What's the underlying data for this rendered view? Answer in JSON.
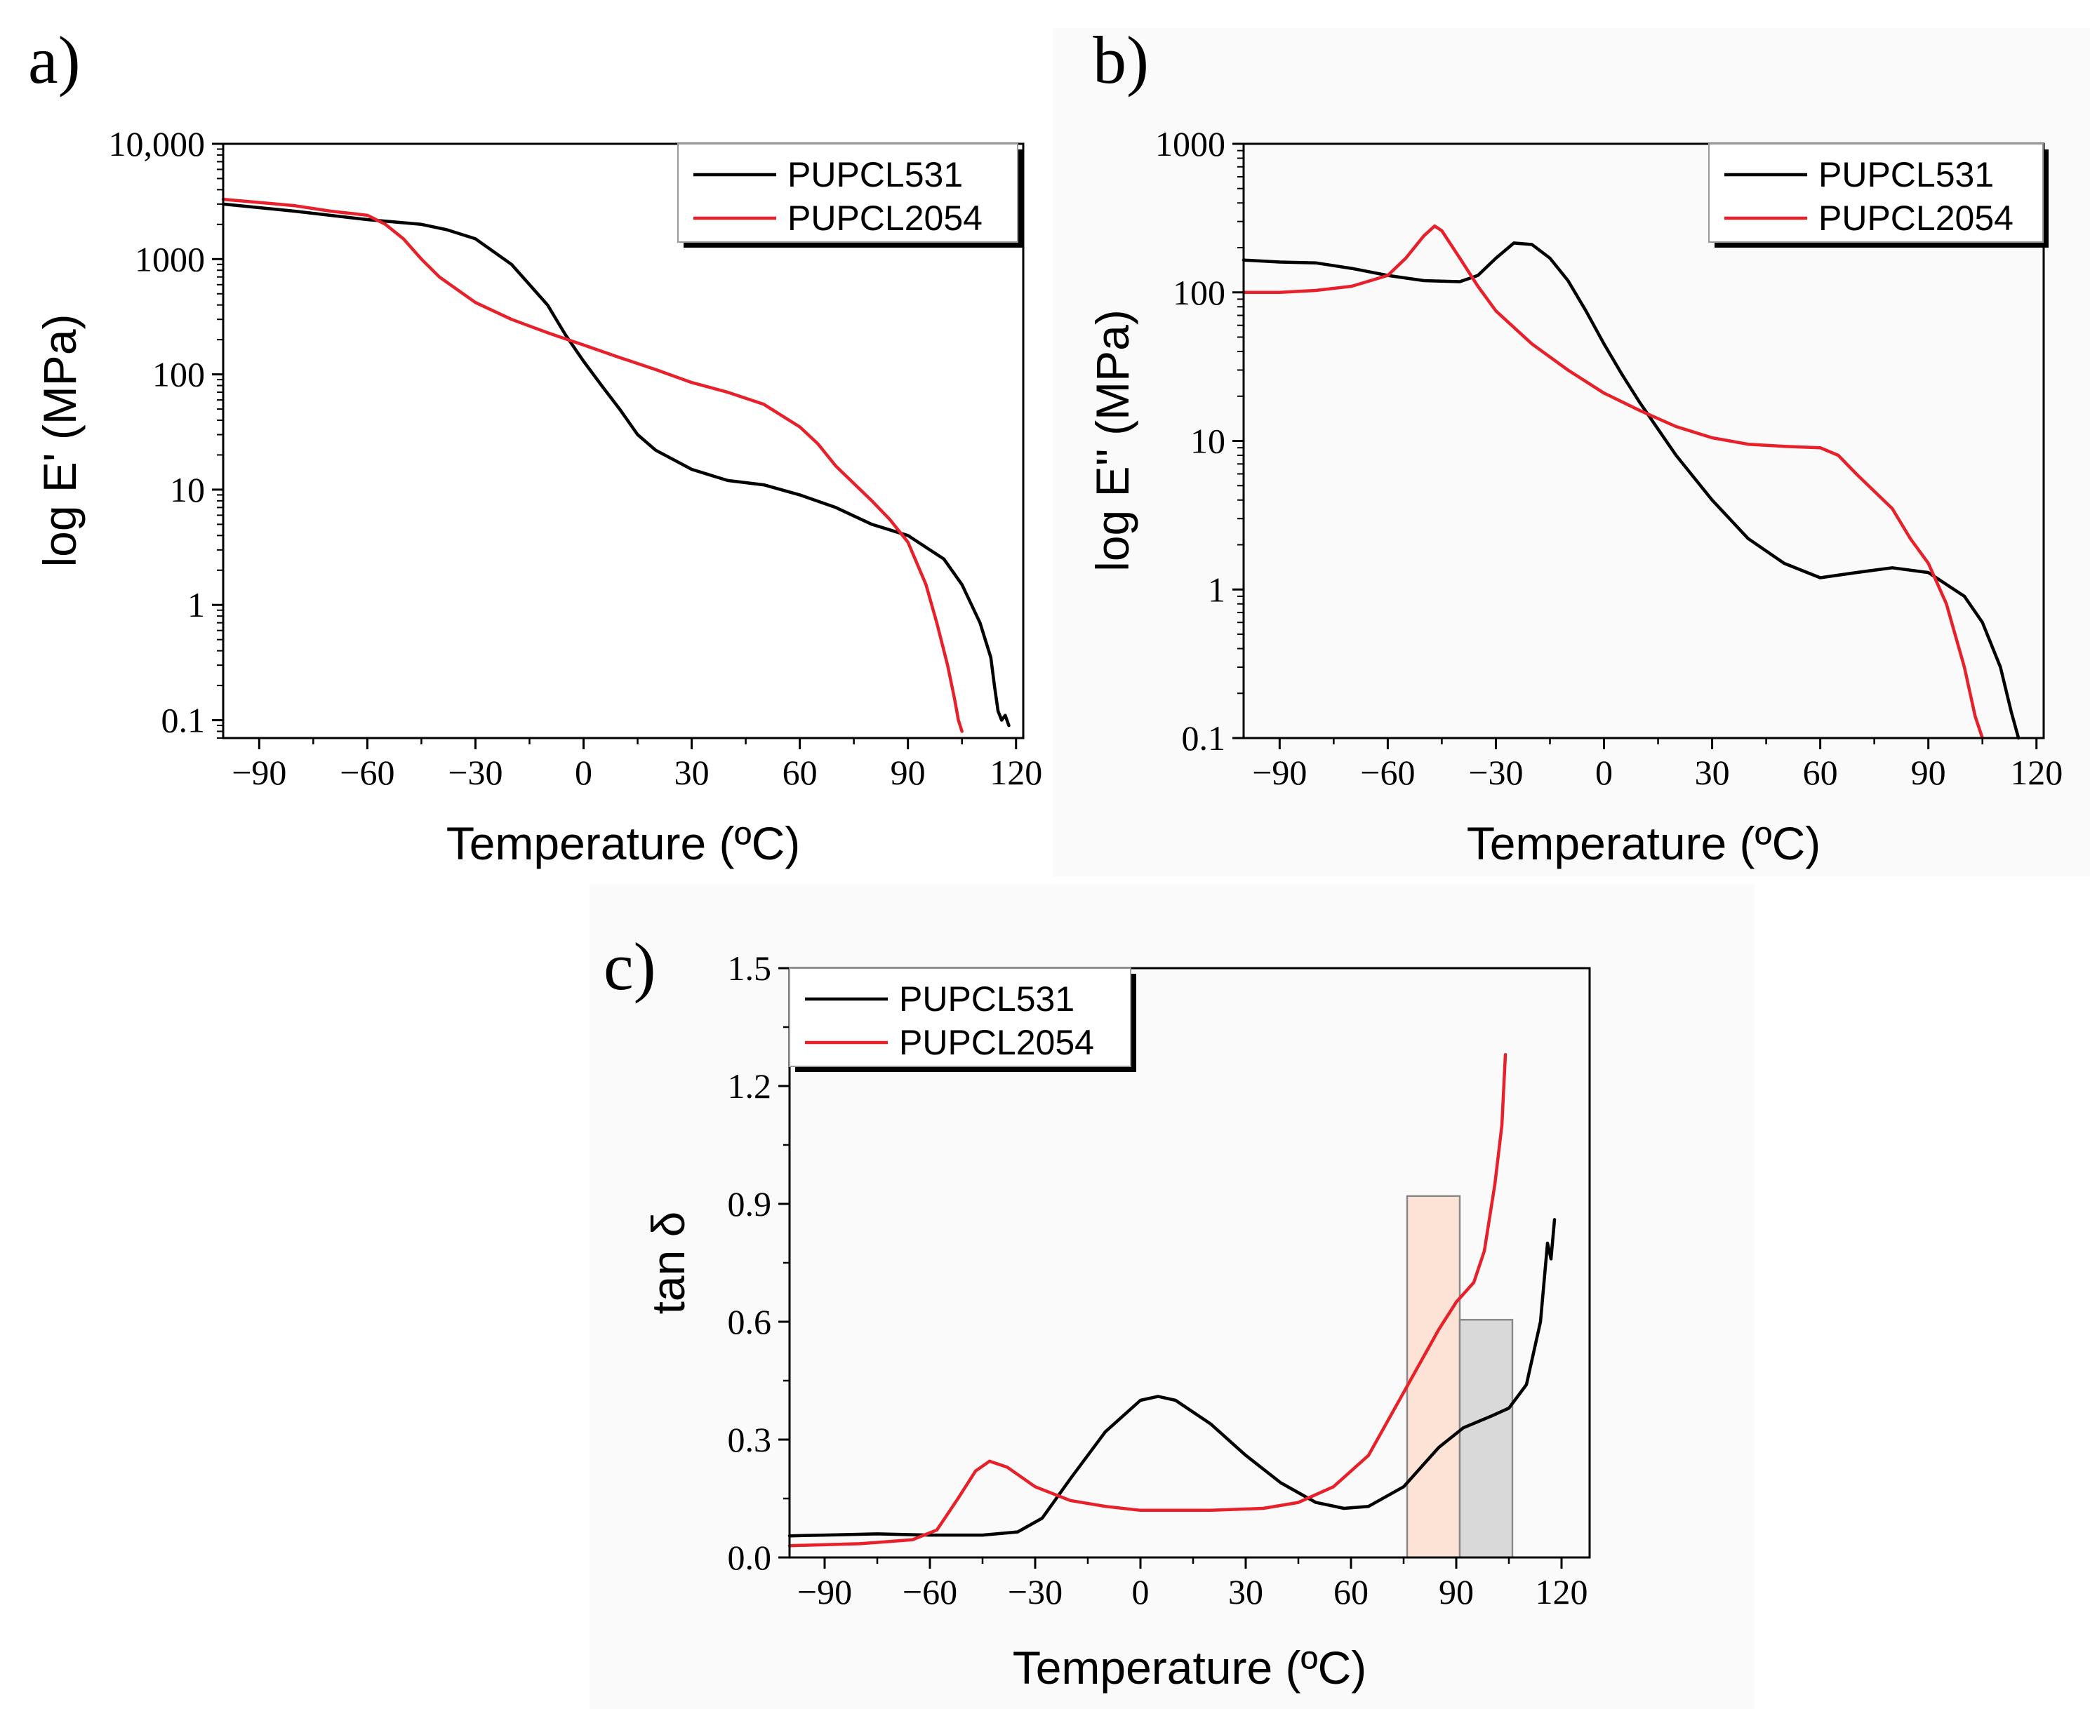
{
  "chart_data": [
    {
      "panel": "a)",
      "type": "line",
      "xlabel": "Temperature (ºC)",
      "ylabel": "log E' (MPa)",
      "yscale": "log",
      "xlim": [
        -100,
        122
      ],
      "ylim": [
        0.07,
        10000
      ],
      "xticks": [
        -90,
        -60,
        -30,
        0,
        30,
        60,
        90,
        120
      ],
      "xtick_labels": [
        "−90",
        "−60",
        "−30",
        "0",
        "30",
        "60",
        "90",
        "120"
      ],
      "yticks": [
        0.1,
        1,
        10,
        100,
        1000,
        10000
      ],
      "ytick_labels": [
        "0.1",
        "1",
        "10",
        "100",
        "1000",
        "10,000"
      ],
      "legend_position": "top-right",
      "series": [
        {
          "name": "PUPCL531",
          "color": "#000000",
          "points": [
            [
              -100,
              3000
            ],
            [
              -80,
              2600
            ],
            [
              -60,
              2200
            ],
            [
              -45,
              2000
            ],
            [
              -38,
              1800
            ],
            [
              -30,
              1500
            ],
            [
              -20,
              900
            ],
            [
              -10,
              400
            ],
            [
              -5,
              220
            ],
            [
              0,
              130
            ],
            [
              5,
              80
            ],
            [
              10,
              50
            ],
            [
              15,
              30
            ],
            [
              20,
              22
            ],
            [
              30,
              15
            ],
            [
              40,
              12
            ],
            [
              50,
              11
            ],
            [
              60,
              9
            ],
            [
              70,
              7
            ],
            [
              80,
              5
            ],
            [
              90,
              4
            ],
            [
              100,
              2.5
            ],
            [
              105,
              1.5
            ],
            [
              110,
              0.7
            ],
            [
              113,
              0.35
            ],
            [
              114,
              0.2
            ],
            [
              115,
              0.12
            ],
            [
              116,
              0.1
            ],
            [
              117,
              0.11
            ],
            [
              118,
              0.09
            ]
          ]
        },
        {
          "name": "PUPCL2054",
          "color": "#e8202a",
          "points": [
            [
              -100,
              3300
            ],
            [
              -90,
              3100
            ],
            [
              -80,
              2900
            ],
            [
              -70,
              2600
            ],
            [
              -60,
              2400
            ],
            [
              -55,
              2000
            ],
            [
              -50,
              1500
            ],
            [
              -45,
              1000
            ],
            [
              -40,
              700
            ],
            [
              -30,
              420
            ],
            [
              -20,
              300
            ],
            [
              -10,
              230
            ],
            [
              0,
              180
            ],
            [
              10,
              140
            ],
            [
              20,
              110
            ],
            [
              30,
              85
            ],
            [
              40,
              70
            ],
            [
              50,
              55
            ],
            [
              60,
              35
            ],
            [
              65,
              25
            ],
            [
              70,
              16
            ],
            [
              80,
              8
            ],
            [
              85,
              5.5
            ],
            [
              90,
              3.5
            ],
            [
              95,
              1.5
            ],
            [
              98,
              0.7
            ],
            [
              101,
              0.3
            ],
            [
              103,
              0.15
            ],
            [
              104,
              0.1
            ],
            [
              105,
              0.08
            ]
          ]
        }
      ]
    },
    {
      "panel": "b)",
      "type": "line",
      "xlabel": "Temperature (ºC)",
      "ylabel": "log E'' (MPa)",
      "yscale": "log",
      "xlim": [
        -100,
        122
      ],
      "ylim": [
        0.1,
        1000
      ],
      "xticks": [
        -90,
        -60,
        -30,
        0,
        30,
        60,
        90,
        120
      ],
      "xtick_labels": [
        "−90",
        "−60",
        "−30",
        "0",
        "30",
        "60",
        "90",
        "120"
      ],
      "yticks": [
        0.1,
        1,
        10,
        100,
        1000
      ],
      "ytick_labels": [
        "0.1",
        "1",
        "10",
        "100",
        "1000"
      ],
      "legend_position": "top-right",
      "series": [
        {
          "name": "PUPCL531",
          "color": "#000000",
          "points": [
            [
              -100,
              165
            ],
            [
              -90,
              160
            ],
            [
              -80,
              158
            ],
            [
              -70,
              145
            ],
            [
              -60,
              130
            ],
            [
              -50,
              120
            ],
            [
              -40,
              118
            ],
            [
              -35,
              130
            ],
            [
              -30,
              170
            ],
            [
              -25,
              215
            ],
            [
              -20,
              210
            ],
            [
              -15,
              170
            ],
            [
              -10,
              120
            ],
            [
              -5,
              75
            ],
            [
              0,
              45
            ],
            [
              5,
              28
            ],
            [
              10,
              18
            ],
            [
              15,
              12
            ],
            [
              20,
              8
            ],
            [
              30,
              4
            ],
            [
              40,
              2.2
            ],
            [
              50,
              1.5
            ],
            [
              60,
              1.2
            ],
            [
              70,
              1.3
            ],
            [
              80,
              1.4
            ],
            [
              90,
              1.3
            ],
            [
              100,
              0.9
            ],
            [
              105,
              0.6
            ],
            [
              110,
              0.3
            ],
            [
              113,
              0.15
            ],
            [
              115,
              0.1
            ]
          ]
        },
        {
          "name": "PUPCL2054",
          "color": "#e8202a",
          "points": [
            [
              -100,
              100
            ],
            [
              -90,
              100
            ],
            [
              -80,
              103
            ],
            [
              -70,
              110
            ],
            [
              -60,
              130
            ],
            [
              -55,
              170
            ],
            [
              -50,
              240
            ],
            [
              -47,
              280
            ],
            [
              -45,
              260
            ],
            [
              -40,
              170
            ],
            [
              -35,
              110
            ],
            [
              -30,
              75
            ],
            [
              -20,
              45
            ],
            [
              -10,
              30
            ],
            [
              0,
              21
            ],
            [
              10,
              16
            ],
            [
              20,
              12.5
            ],
            [
              30,
              10.5
            ],
            [
              40,
              9.5
            ],
            [
              50,
              9.2
            ],
            [
              60,
              9
            ],
            [
              65,
              8
            ],
            [
              70,
              6
            ],
            [
              80,
              3.5
            ],
            [
              85,
              2.2
            ],
            [
              90,
              1.5
            ],
            [
              95,
              0.8
            ],
            [
              100,
              0.3
            ],
            [
              103,
              0.14
            ],
            [
              105,
              0.1
            ]
          ]
        }
      ]
    },
    {
      "panel": "c)",
      "type": "line",
      "xlabel": "Temperature (ºC)",
      "ylabel": "tan δ",
      "yscale": "linear",
      "xlim": [
        -100,
        128
      ],
      "ylim": [
        0,
        1.5
      ],
      "xticks": [
        -90,
        -60,
        -30,
        0,
        30,
        60,
        90,
        120
      ],
      "xtick_labels": [
        "−90",
        "−60",
        "−30",
        "0",
        "30",
        "60",
        "90",
        "120"
      ],
      "yticks": [
        0,
        0.3,
        0.6,
        0.9,
        1.2,
        1.5
      ],
      "ytick_labels": [
        "0.0",
        "0.3",
        "0.6",
        "0.9",
        "1.2",
        "1.5"
      ],
      "legend_position": "top-left",
      "series": [
        {
          "name": "PUPCL531",
          "color": "#000000",
          "points": [
            [
              -100,
              0.055
            ],
            [
              -90,
              0.057
            ],
            [
              -75,
              0.06
            ],
            [
              -60,
              0.057
            ],
            [
              -45,
              0.057
            ],
            [
              -35,
              0.065
            ],
            [
              -28,
              0.1
            ],
            [
              -20,
              0.2
            ],
            [
              -10,
              0.32
            ],
            [
              0,
              0.4
            ],
            [
              5,
              0.41
            ],
            [
              10,
              0.4
            ],
            [
              20,
              0.34
            ],
            [
              30,
              0.26
            ],
            [
              40,
              0.19
            ],
            [
              50,
              0.14
            ],
            [
              58,
              0.125
            ],
            [
              65,
              0.13
            ],
            [
              75,
              0.18
            ],
            [
              85,
              0.28
            ],
            [
              92,
              0.33
            ],
            [
              100,
              0.36
            ],
            [
              105,
              0.38
            ],
            [
              110,
              0.44
            ],
            [
              114,
              0.6
            ],
            [
              116,
              0.8
            ],
            [
              117,
              0.76
            ],
            [
              118,
              0.86
            ]
          ]
        },
        {
          "name": "PUPCL2054",
          "color": "#e8202a",
          "points": [
            [
              -100,
              0.03
            ],
            [
              -80,
              0.035
            ],
            [
              -65,
              0.045
            ],
            [
              -58,
              0.07
            ],
            [
              -52,
              0.15
            ],
            [
              -47,
              0.22
            ],
            [
              -43,
              0.245
            ],
            [
              -38,
              0.23
            ],
            [
              -30,
              0.18
            ],
            [
              -20,
              0.145
            ],
            [
              -10,
              0.13
            ],
            [
              0,
              0.12
            ],
            [
              20,
              0.12
            ],
            [
              35,
              0.125
            ],
            [
              45,
              0.14
            ],
            [
              55,
              0.18
            ],
            [
              65,
              0.26
            ],
            [
              75,
              0.42
            ],
            [
              85,
              0.58
            ],
            [
              90,
              0.65
            ],
            [
              95,
              0.7
            ],
            [
              98,
              0.78
            ],
            [
              101,
              0.95
            ],
            [
              103,
              1.1
            ],
            [
              104,
              1.28
            ]
          ]
        }
      ],
      "highlight_bars": [
        {
          "x_start": 76,
          "x_end": 91,
          "height": 0.92,
          "color": "#fde3d5"
        },
        {
          "x_start": 91,
          "x_end": 106,
          "height": 0.605,
          "color": "#d9d9d9"
        }
      ]
    }
  ]
}
